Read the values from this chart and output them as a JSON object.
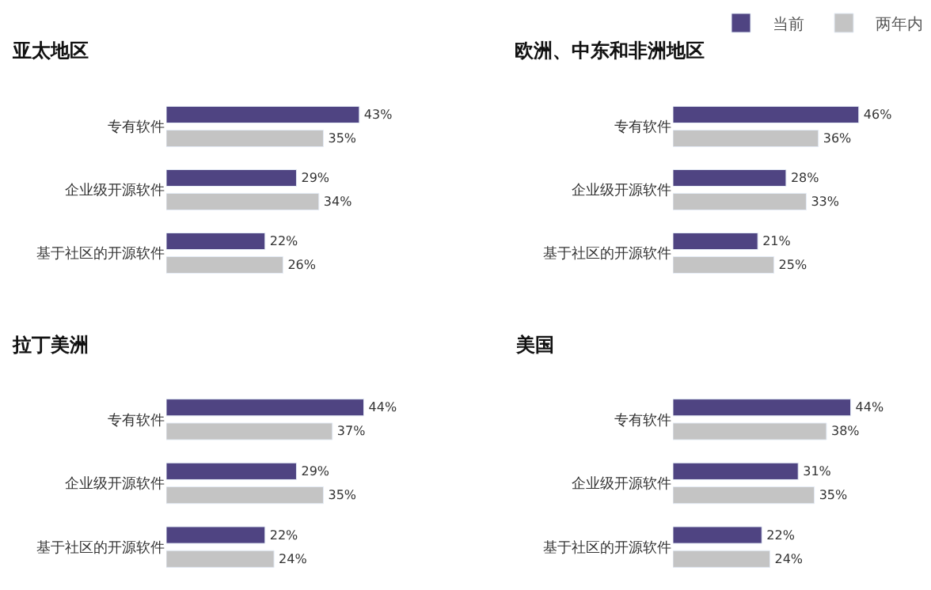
{
  "chart_data": [
    {
      "type": "bar",
      "orientation": "horizontal",
      "title": "亚太地区",
      "categories": [
        "专有软件",
        "企业级开源软件",
        "基于社区的开源软件"
      ],
      "series": [
        {
          "color": "#4f4482",
          "values": [
            43,
            29,
            22
          ],
          "value_labels": [
            "43%",
            "29%",
            "22%"
          ]
        },
        {
          "color": "#c4c4c4",
          "values": [
            35,
            34,
            26
          ],
          "value_labels": [
            "35%",
            "34%",
            "26%"
          ]
        }
      ]
    },
    {
      "type": "bar",
      "orientation": "horizontal",
      "title": "欧洲、中东和非洲地区",
      "categories": [
        "专有软件",
        "企业级开源软件",
        "基于社区的开源软件"
      ],
      "legend": "top right",
      "series": [
        {
          "name": "当前",
          "color": "#4f4482",
          "values": [
            46,
            28,
            21
          ],
          "value_labels": [
            "46%",
            "28%",
            "21%"
          ]
        },
        {
          "name": "两年内",
          "color": "#c4c4c4",
          "values": [
            36,
            33,
            25
          ],
          "value_labels": [
            "36%",
            "33%",
            "25%"
          ]
        }
      ]
    },
    {
      "type": "bar",
      "orientation": "horizontal",
      "title": "拉丁美洲",
      "categories": [
        "专有软件",
        "企业级开源软件",
        "基于社区的开源软件"
      ],
      "series": [
        {
          "color": "#4f4482",
          "values": [
            44,
            29,
            22
          ],
          "value_labels": [
            "44%",
            "29%",
            "22%"
          ]
        },
        {
          "color": "#c4c4c4",
          "values": [
            37,
            35,
            24
          ],
          "value_labels": [
            "37%",
            "35%",
            "24%"
          ]
        }
      ]
    },
    {
      "type": "bar",
      "orientation": "horizontal",
      "title": "美国",
      "categories": [
        "专有软件",
        "企业级开源软件",
        "基于社区的开源软件"
      ],
      "series": [
        {
          "color": "#4f4482",
          "values": [
            44,
            31,
            22
          ],
          "value_labels": [
            "44%",
            "31%",
            "22%"
          ]
        },
        {
          "color": "#c4c4c4",
          "values": [
            38,
            35,
            24
          ],
          "value_labels": [
            "38%",
            "35%",
            "24%"
          ]
        }
      ]
    }
  ]
}
